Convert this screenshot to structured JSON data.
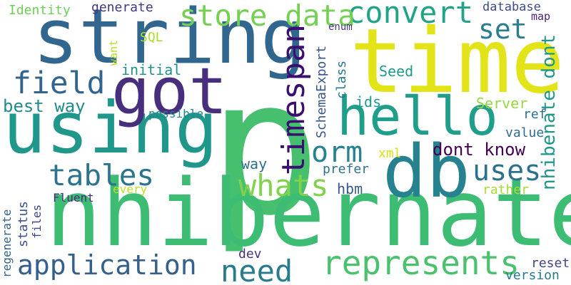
{
  "words": [
    {
      "text": "p",
      "color": "#46c06f"
    },
    {
      "text": "nhibernate",
      "color": "#3dbc74"
    },
    {
      "text": "time",
      "color": "#e3e418"
    },
    {
      "text": "string",
      "color": "#31668e"
    },
    {
      "text": "db",
      "color": "#26828e"
    },
    {
      "text": "using",
      "color": "#1f978b"
    },
    {
      "text": "got",
      "color": "#472f7d"
    },
    {
      "text": "hello",
      "color": "#1f9e89"
    },
    {
      "text": "convert",
      "color": "#20a386"
    },
    {
      "text": "store data",
      "color": "#75d054"
    },
    {
      "text": "represents",
      "color": "#4ac16d"
    },
    {
      "text": "application",
      "color": "#355f8d"
    },
    {
      "text": "timespan",
      "color": "#3b0f70"
    },
    {
      "text": "whats",
      "color": "#81d34d"
    },
    {
      "text": "tables",
      "color": "#2c738e"
    },
    {
      "text": "need",
      "color": "#287c8e"
    },
    {
      "text": "field",
      "color": "#32648e"
    },
    {
      "text": "orm",
      "color": "#25838e"
    },
    {
      "text": "uses",
      "color": "#2d708e"
    },
    {
      "text": "set",
      "color": "#287d8e"
    },
    {
      "text": "dont know",
      "color": "#440154"
    },
    {
      "text": "nhibenate dont",
      "color": "#1f988b"
    },
    {
      "text": "best way",
      "color": "#228c8d"
    },
    {
      "text": "SchemaExport",
      "color": "#39568c"
    },
    {
      "text": "Server",
      "color": "#95d840"
    },
    {
      "text": "Seed",
      "color": "#1e9c89"
    },
    {
      "text": "generate",
      "color": "#453781"
    },
    {
      "text": "database",
      "color": "#3e4a89"
    },
    {
      "text": "Identity",
      "color": "#6ece58"
    },
    {
      "text": "SQL",
      "color": "#addc30"
    },
    {
      "text": "enum",
      "color": "#443983"
    },
    {
      "text": "map",
      "color": "#482475"
    },
    {
      "text": "want",
      "color": "#b5de2b"
    },
    {
      "text": "initial",
      "color": "#21918c"
    },
    {
      "text": "class",
      "color": "#2a788e"
    },
    {
      "text": "ids",
      "color": "#1f9a8a"
    },
    {
      "text": "ref",
      "color": "#2d708e"
    },
    {
      "text": "value",
      "color": "#2e6d8e"
    },
    {
      "text": "possible",
      "color": "#24868e"
    },
    {
      "text": "xml",
      "color": "#d8e219"
    },
    {
      "text": "way",
      "color": "#2d708e"
    },
    {
      "text": "prefer",
      "color": "#2c728e"
    },
    {
      "text": "hbm",
      "color": "#38588c"
    },
    {
      "text": "every",
      "color": "#bddf26"
    },
    {
      "text": "rather",
      "color": "#a8db34"
    },
    {
      "text": "regenerate",
      "color": "#33638d"
    },
    {
      "text": "status",
      "color": "#3b528b"
    },
    {
      "text": "files",
      "color": "#414487"
    },
    {
      "text": "Fluent",
      "color": "#472c7a"
    },
    {
      "text": "dev",
      "color": "#46327e"
    },
    {
      "text": "reset",
      "color": "#3f4788"
    },
    {
      "text": "version",
      "color": "#2a788e"
    }
  ]
}
